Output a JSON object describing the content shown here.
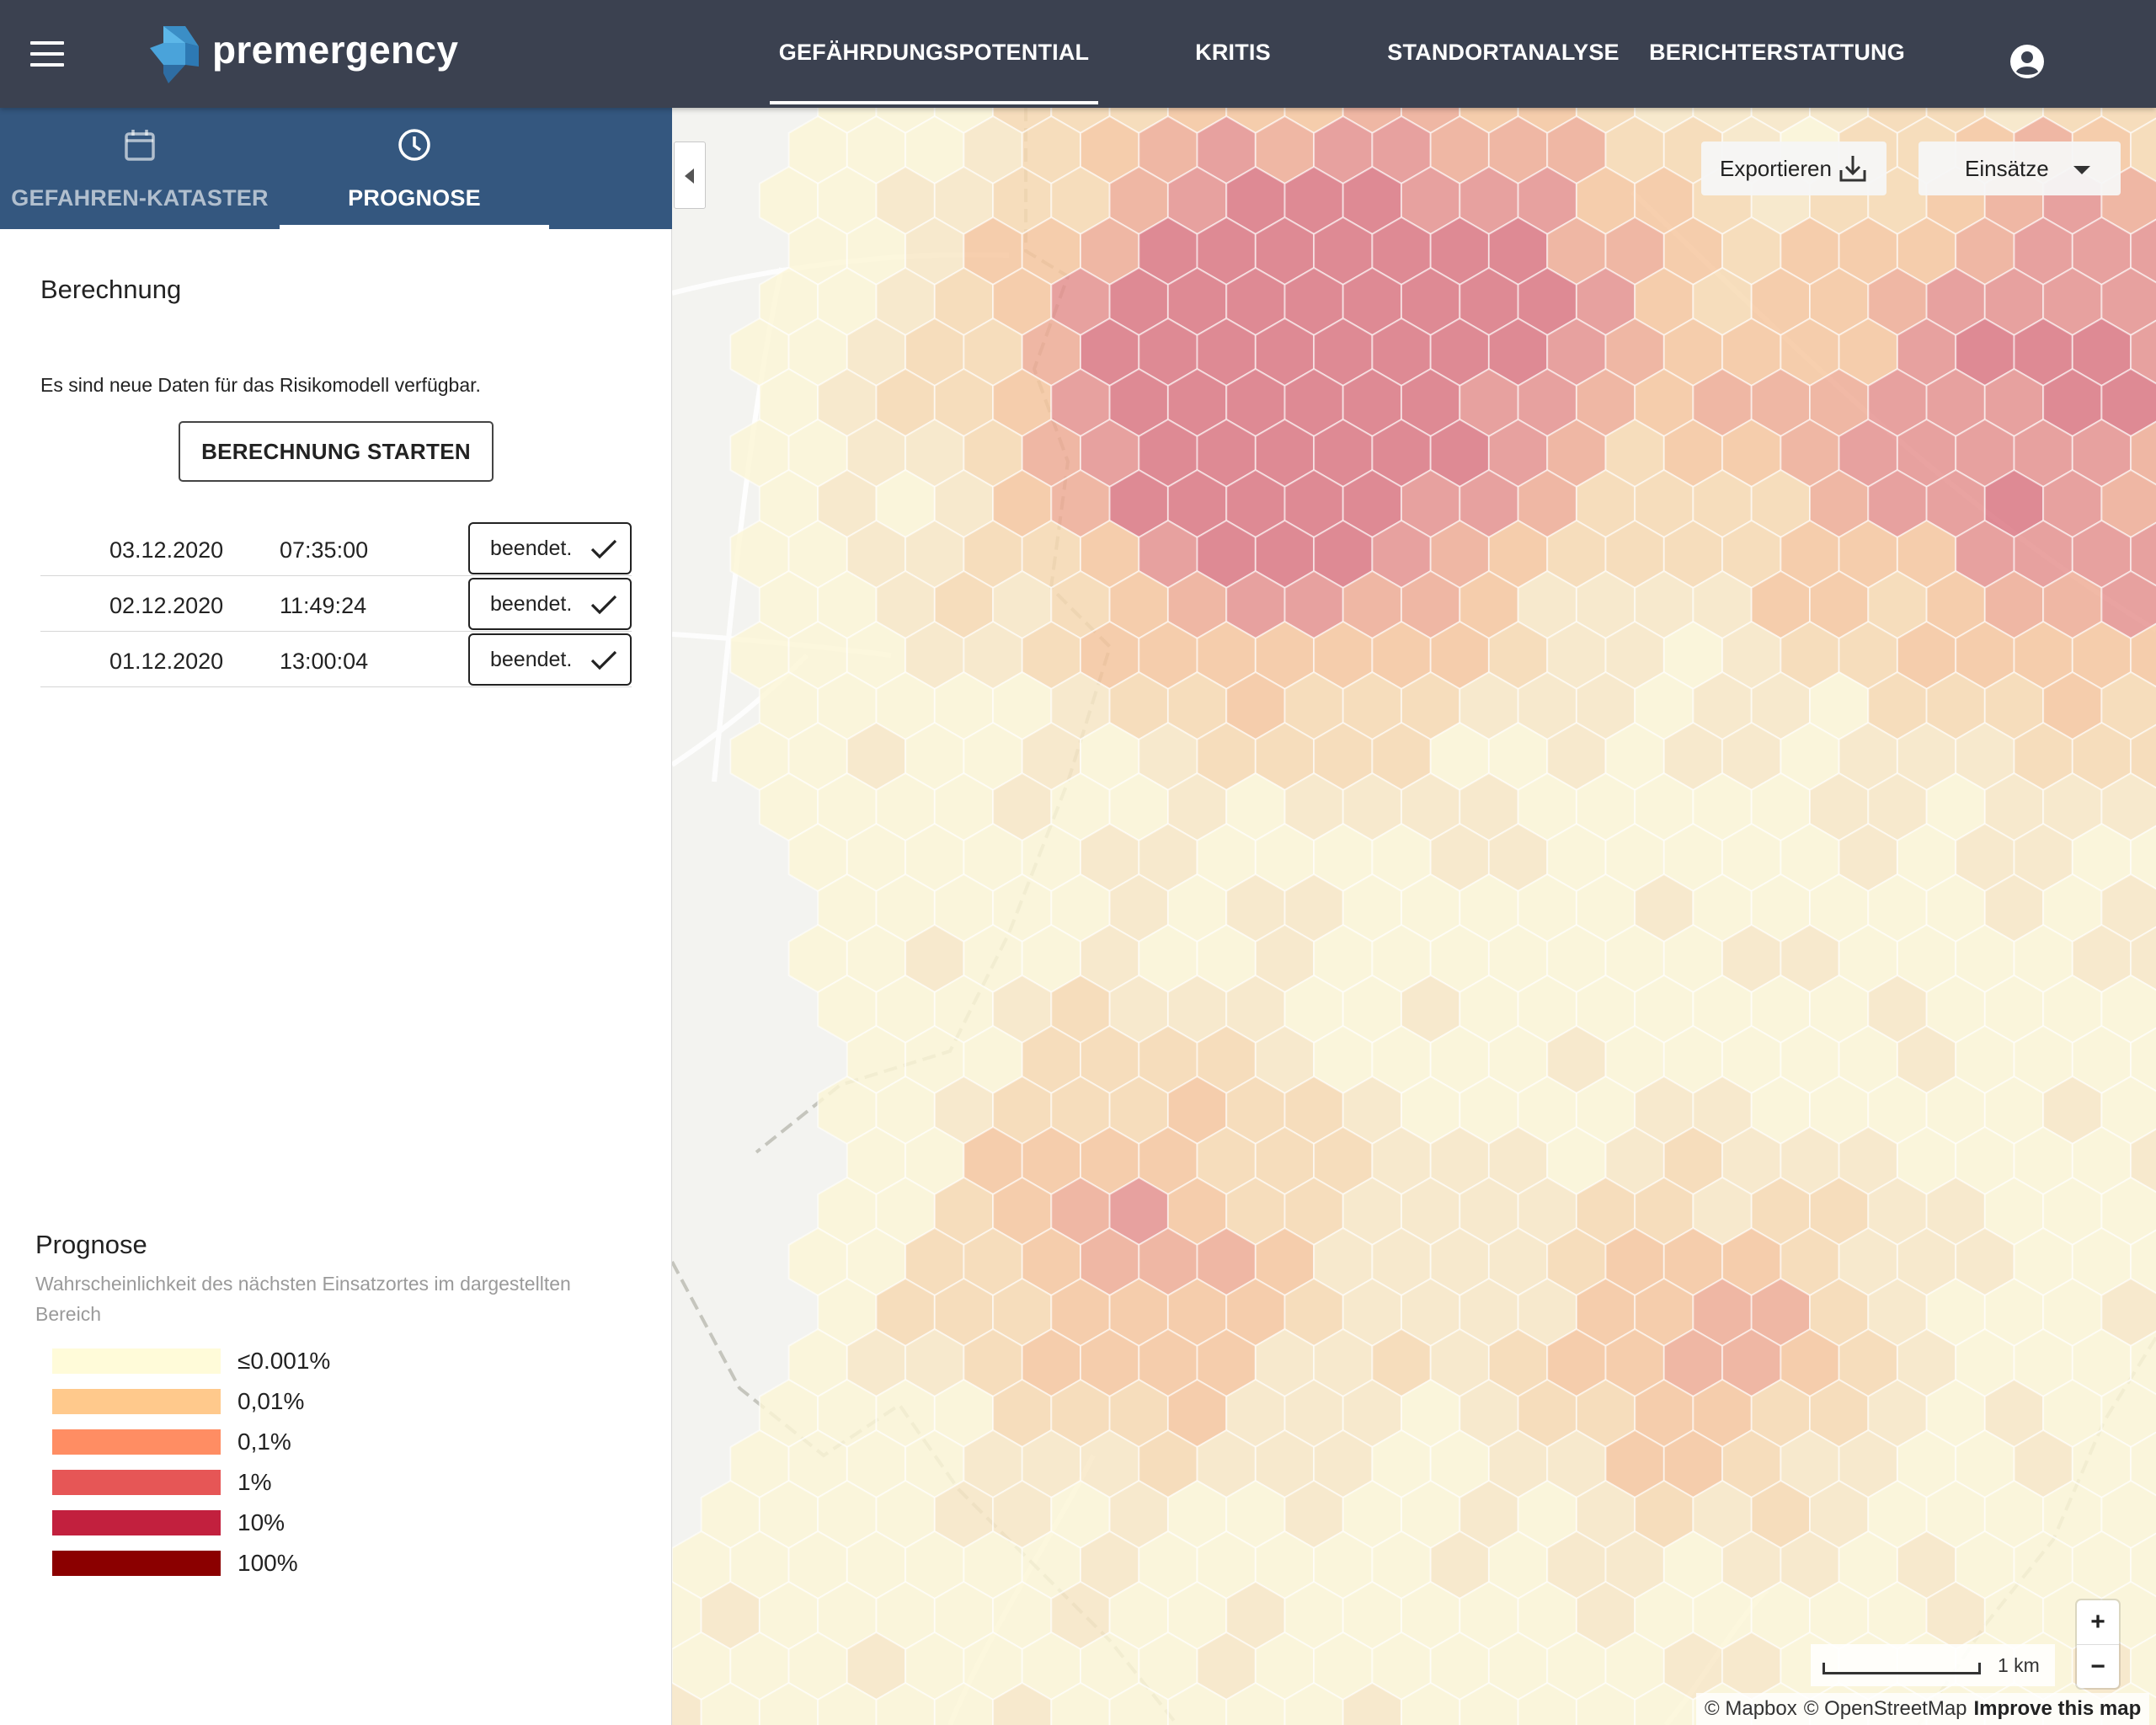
{
  "app": {
    "brand": "premergency",
    "menu_icon": "hamburger-menu-icon",
    "account_icon": "account-circle-icon"
  },
  "nav": {
    "tabs": [
      {
        "label": "GEFÄHRDUNGSPOTENTIAL",
        "active": true
      },
      {
        "label": "KRITIS",
        "active": false
      },
      {
        "label": "STANDORTANALYSE",
        "active": false
      },
      {
        "label": "BERICHTERSTATTUNG",
        "active": false
      }
    ]
  },
  "sidebar": {
    "tabs": [
      {
        "label": "GEFAHREN-KATASTER",
        "icon": "calendar-icon",
        "active": false
      },
      {
        "label": "PROGNOSE",
        "icon": "clock-icon",
        "active": true
      }
    ],
    "section_title": "Berechnung",
    "info_text": "Es sind neue Daten für das Risikomodell verfügbar.",
    "start_button": "BERECHNUNG STARTEN",
    "runs": [
      {
        "date": "03.12.2020",
        "time": "07:35:00",
        "status": "beendet."
      },
      {
        "date": "02.12.2020",
        "time": "11:49:24",
        "status": "beendet."
      },
      {
        "date": "01.12.2020",
        "time": "13:00:04",
        "status": "beendet."
      }
    ],
    "legend": {
      "title": "Prognose",
      "description": "Wahrscheinlichkeit des nächsten Einsatzortes im dargestellten Bereich",
      "items": [
        {
          "label": "≤0.001%",
          "color": "#fffbd9"
        },
        {
          "label": "0,01%",
          "color": "#ffc98c"
        },
        {
          "label": "0,1%",
          "color": "#ff8d63"
        },
        {
          "label": "1%",
          "color": "#e65656"
        },
        {
          "label": "10%",
          "color": "#c2203e"
        },
        {
          "label": "100%",
          "color": "#8b0000"
        }
      ]
    }
  },
  "map": {
    "export_label": "Exportieren",
    "export_icon": "download-icon",
    "layer_select": "Einsätze",
    "zoom_in": "+",
    "zoom_out": "−",
    "scale_label": "1 km",
    "attribution": {
      "mapbox": "© Mapbox",
      "osm": "© OpenStreetMap",
      "improve": "Improve this map"
    }
  }
}
